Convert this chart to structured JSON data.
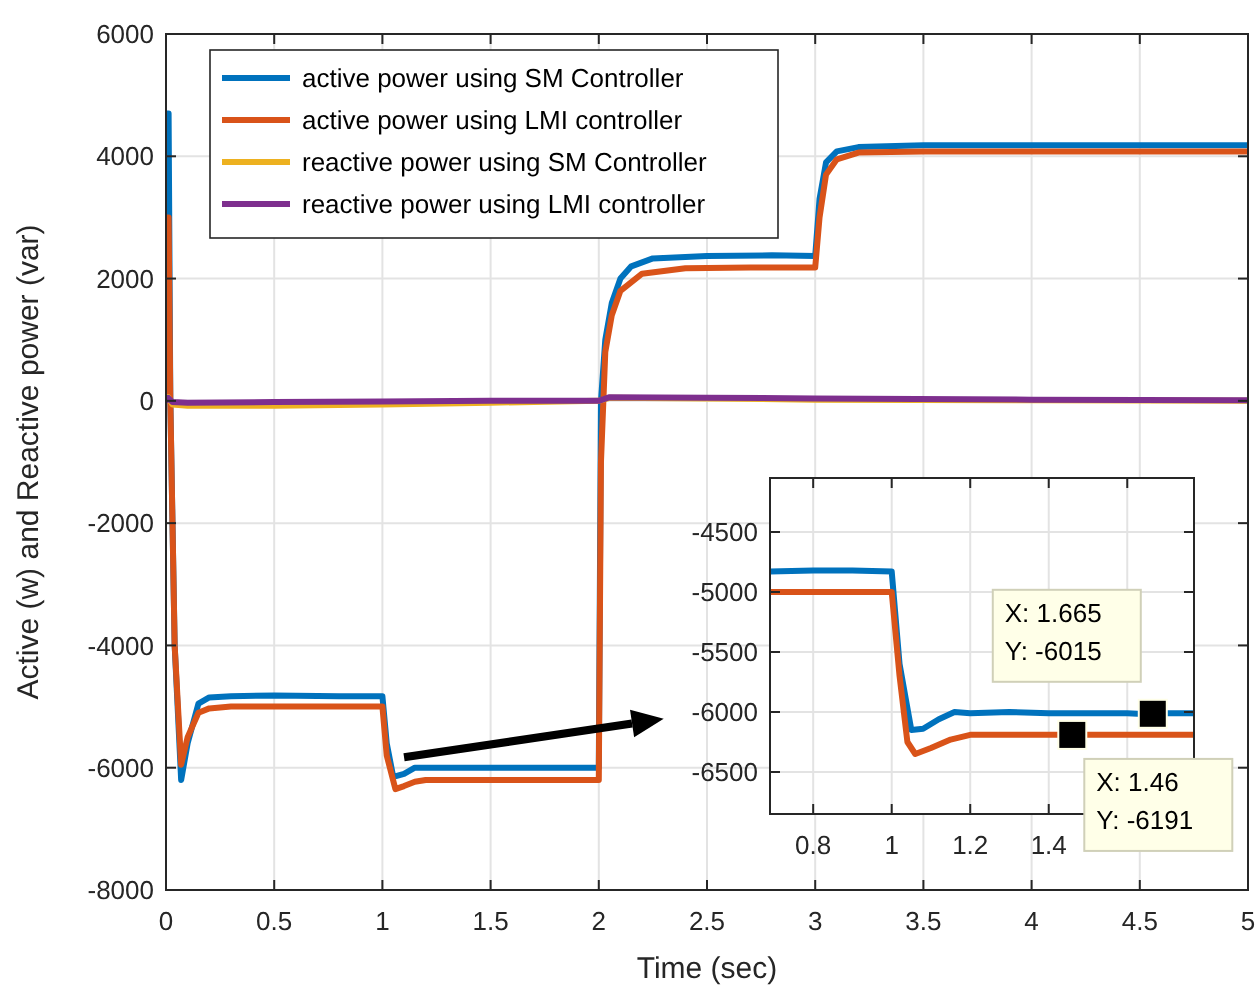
{
  "chart_data": [
    {
      "type": "line",
      "xlabel": "Time (sec)",
      "ylabel": "Active (w) and Reactive power (var)",
      "xlim": [
        0,
        5
      ],
      "ylim": [
        -8000,
        6000
      ],
      "xticks": [
        0,
        0.5,
        1,
        1.5,
        2,
        2.5,
        3,
        3.5,
        4,
        4.5,
        5
      ],
      "yticks": [
        -8000,
        -6000,
        -4000,
        -2000,
        0,
        2000,
        4000,
        6000
      ],
      "grid": true,
      "legend": "top left",
      "series": [
        {
          "name": "active power using SM Controller",
          "color": "#0072bd",
          "x": [
            0,
            0.005,
            0.012,
            0.02,
            0.04,
            0.07,
            0.1,
            0.15,
            0.2,
            0.3,
            0.5,
            0.8,
            1.0,
            1.02,
            1.05,
            1.1,
            1.15,
            1.3,
            1.6,
            2.0,
            2.01,
            2.03,
            2.06,
            2.1,
            2.15,
            2.25,
            2.5,
            2.8,
            3.0,
            3.02,
            3.05,
            3.1,
            3.2,
            3.5,
            4,
            4.5,
            5
          ],
          "values": [
            0,
            4700,
            4700,
            0,
            -4000,
            -6200,
            -5600,
            -4950,
            -4850,
            -4830,
            -4820,
            -4830,
            -4830,
            -5600,
            -6150,
            -6100,
            -6000,
            -6000,
            -6000,
            -6000,
            0,
            1000,
            1600,
            2000,
            2200,
            2330,
            2370,
            2380,
            2370,
            3300,
            3900,
            4080,
            4150,
            4180,
            4180,
            4180,
            4180
          ]
        },
        {
          "name": "active power using LMI controller",
          "color": "#d95319",
          "x": [
            0,
            0.005,
            0.012,
            0.02,
            0.04,
            0.07,
            0.1,
            0.15,
            0.2,
            0.3,
            0.5,
            0.8,
            1.0,
            1.02,
            1.06,
            1.1,
            1.15,
            1.2,
            1.5,
            2.0,
            2.01,
            2.03,
            2.06,
            2.1,
            2.2,
            2.4,
            2.7,
            3.0,
            3.02,
            3.05,
            3.1,
            3.2,
            3.5,
            4,
            4.5,
            5
          ],
          "values": [
            0,
            3000,
            3000,
            0,
            -4000,
            -5950,
            -5500,
            -5100,
            -5030,
            -5000,
            -5000,
            -5000,
            -5000,
            -5800,
            -6350,
            -6300,
            -6230,
            -6200,
            -6200,
            -6200,
            -1000,
            800,
            1400,
            1800,
            2080,
            2170,
            2180,
            2180,
            3000,
            3700,
            3950,
            4060,
            4080,
            4080,
            4080,
            4080
          ]
        },
        {
          "name": "reactive power using SM Controller",
          "color": "#edb120",
          "x": [
            0,
            0.01,
            0.03,
            0.1,
            0.5,
            1.0,
            1.5,
            2.0,
            2.05,
            2.5,
            3.0,
            4,
            5
          ],
          "values": [
            0,
            60,
            -60,
            -80,
            -80,
            -60,
            -30,
            0,
            50,
            40,
            20,
            10,
            0
          ]
        },
        {
          "name": "reactive power using LMI controller",
          "color": "#7e2f8e",
          "x": [
            0,
            0.01,
            0.03,
            0.1,
            0.5,
            1.0,
            1.5,
            2.0,
            2.05,
            2.5,
            3.0,
            4,
            5
          ],
          "values": [
            0,
            50,
            -20,
            -30,
            -20,
            -10,
            0,
            0,
            60,
            50,
            40,
            20,
            10
          ]
        }
      ]
    },
    {
      "type": "line",
      "xlim": [
        0.69,
        1.77
      ],
      "ylim": [
        -6850,
        -4050
      ],
      "xticks": [
        0.8,
        1,
        1.2,
        1.4,
        {
          "value": 1.6,
          "label": null
        }
      ],
      "yticks": [
        -6500,
        -6000,
        -5500,
        -5000,
        -4500
      ],
      "grid": true,
      "annotations": [
        {
          "text": "X: 1.665\nY: -6015",
          "x": 1.665,
          "y": -6015
        },
        {
          "text": "X: 1.46\nY: -6191",
          "x": 1.46,
          "y": -6191
        }
      ],
      "series": [
        {
          "color": "#0072bd",
          "x": [
            0.69,
            0.8,
            0.9,
            1.0,
            1.02,
            1.05,
            1.08,
            1.12,
            1.16,
            1.2,
            1.3,
            1.4,
            1.5,
            1.6,
            1.665,
            1.7,
            1.77
          ],
          "values": [
            -4830,
            -4820,
            -4820,
            -4830,
            -5600,
            -6150,
            -6140,
            -6060,
            -6000,
            -6010,
            -6000,
            -6010,
            -6010,
            -6010,
            -6020,
            -6010,
            -6010
          ]
        },
        {
          "color": "#d95319",
          "x": [
            0.69,
            0.8,
            0.9,
            1.0,
            1.02,
            1.04,
            1.06,
            1.1,
            1.15,
            1.2,
            1.3,
            1.46,
            1.6,
            1.77
          ],
          "values": [
            -5000,
            -5000,
            -5000,
            -5000,
            -5700,
            -6250,
            -6350,
            -6300,
            -6230,
            -6190,
            -6190,
            -6190,
            -6190,
            -6190
          ]
        }
      ]
    }
  ]
}
